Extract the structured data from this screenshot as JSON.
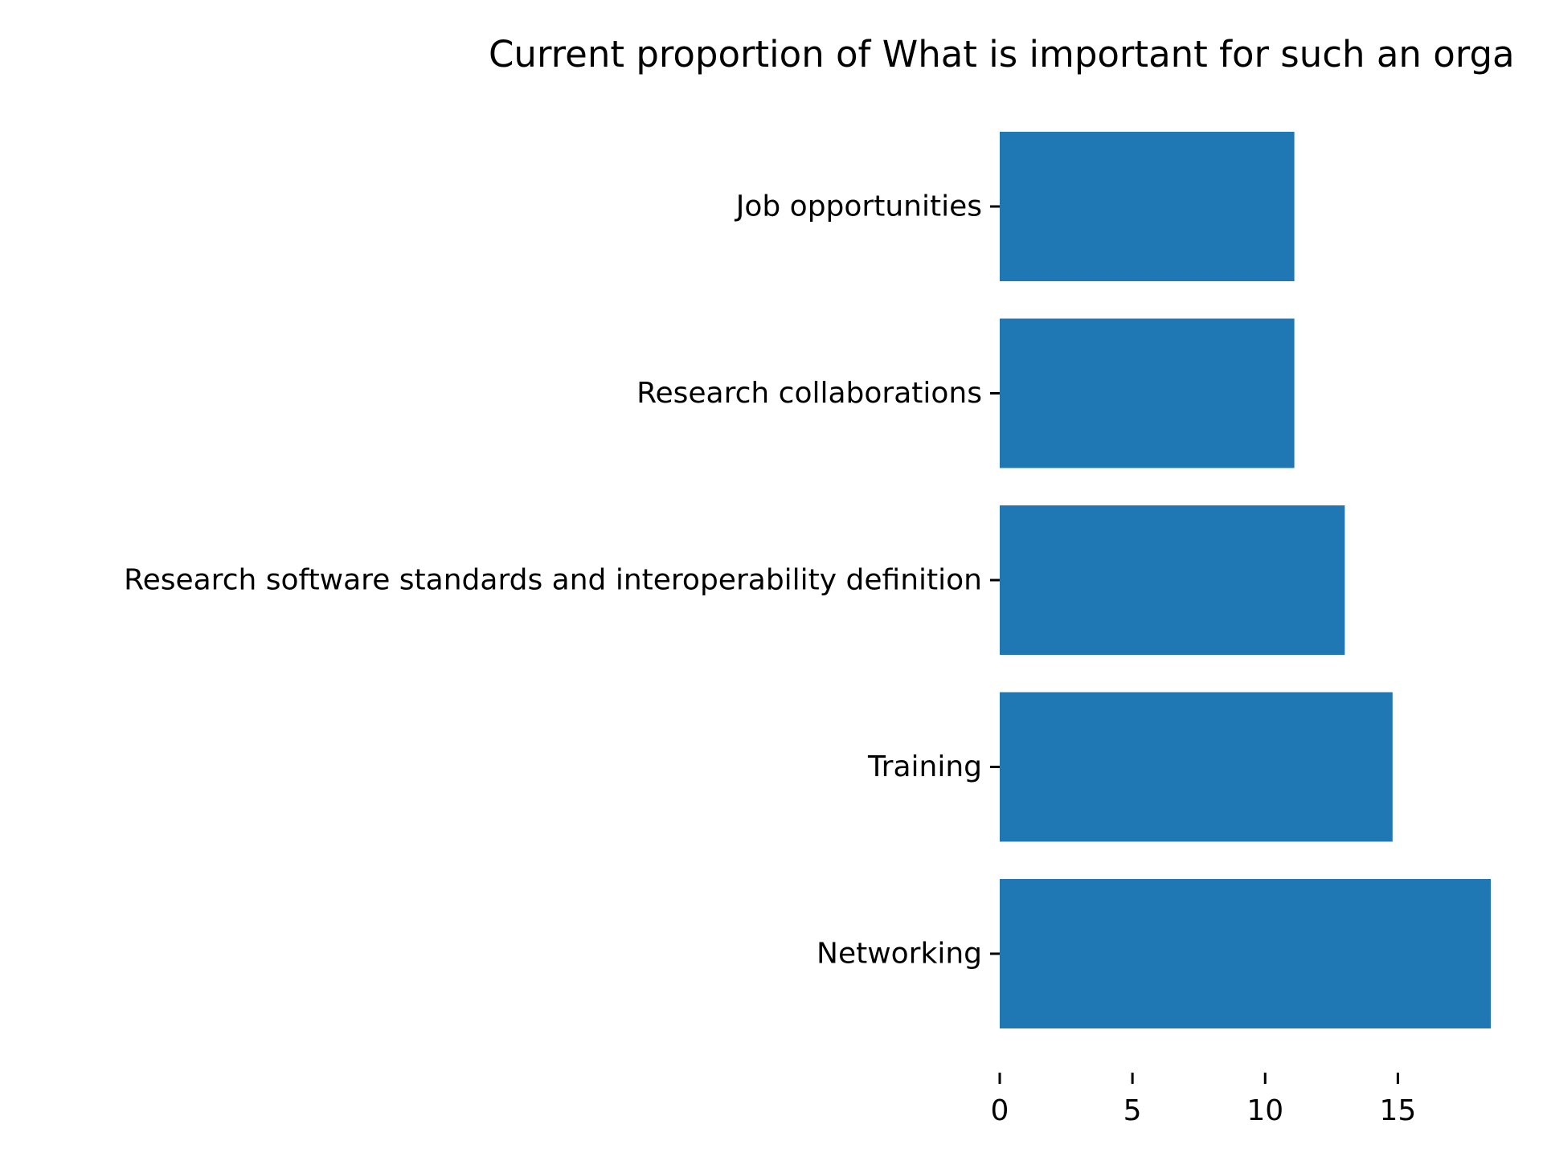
{
  "chart_data": {
    "type": "bar",
    "orientation": "horizontal",
    "title": "Current proportion of What is important for such an orga",
    "categories": [
      "Job opportunities",
      "Research collaborations",
      "Research software standards and interoperability definition",
      "Training",
      "Networking"
    ],
    "values": [
      11.1,
      11.1,
      13,
      14.8,
      18.5
    ],
    "xlabel": "",
    "ylabel": "",
    "xlim": [
      0,
      18.5
    ],
    "xticks": [
      0,
      5,
      10,
      15
    ],
    "grid": false,
    "legend": "none",
    "bar_color": "#1f77b4"
  }
}
